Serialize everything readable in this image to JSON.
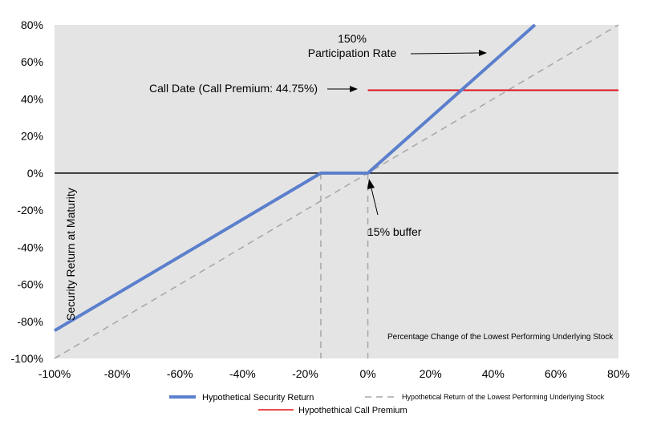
{
  "chart_data": {
    "type": "line",
    "xlim": [
      -1.0,
      0.8
    ],
    "ylim": [
      -1.0,
      0.8
    ],
    "x_ticks": [
      {
        "value": -1.0,
        "label": "-100%"
      },
      {
        "value": -0.8,
        "label": "-80%"
      },
      {
        "value": -0.6,
        "label": "-60%"
      },
      {
        "value": -0.4,
        "label": "-40%"
      },
      {
        "value": -0.2,
        "label": "-20%"
      },
      {
        "value": 0.0,
        "label": "0%"
      },
      {
        "value": 0.2,
        "label": "20%"
      },
      {
        "value": 0.4,
        "label": "40%"
      },
      {
        "value": 0.6,
        "label": "60%"
      },
      {
        "value": 0.8,
        "label": "80%"
      }
    ],
    "y_ticks": [
      {
        "value": -1.0,
        "label": "-100%"
      },
      {
        "value": -0.8,
        "label": "-80%"
      },
      {
        "value": -0.6,
        "label": "-60%"
      },
      {
        "value": -0.4,
        "label": "-40%"
      },
      {
        "value": -0.2,
        "label": "-20%"
      },
      {
        "value": 0.0,
        "label": "0%"
      },
      {
        "value": 0.2,
        "label": "20%"
      },
      {
        "value": 0.4,
        "label": "40%"
      },
      {
        "value": 0.6,
        "label": "60%"
      },
      {
        "value": 0.8,
        "label": "80%"
      }
    ],
    "ylabel": "Security Return at Maturity",
    "xlabel": "Percentage Change of the Lowest Performing Underlying Stock",
    "series": [
      {
        "name": "Hypothetical Security Return",
        "color": "#5b7fcc",
        "style": "solid",
        "x": [
          -1.0,
          -0.15,
          0.0,
          0.5333
        ],
        "y": [
          -0.85,
          0.0,
          0.0,
          0.8
        ]
      },
      {
        "name": "Hypothetical Return of the Lowest Performing Underlying Stock",
        "color": "#a6a6a6",
        "style": "dashed",
        "x": [
          -1.0,
          0.8
        ],
        "y": [
          -1.0,
          0.8
        ]
      },
      {
        "name": "Hypothethical Call Premium",
        "color": "#e0101a",
        "style": "solid",
        "x": [
          0.0,
          0.8
        ],
        "y": [
          0.4475,
          0.4475
        ]
      }
    ],
    "reference_lines": [
      {
        "orientation": "vertical",
        "x": -0.15,
        "color": "#a6a6a6",
        "style": "dashed"
      },
      {
        "orientation": "vertical",
        "x": 0.0,
        "color": "#a6a6a6",
        "style": "dashed"
      }
    ],
    "annotations": {
      "participation_line1": "150%",
      "participation_line2": "Participation Rate",
      "call_date": "Call Date (Call Premium: 44.75%)",
      "buffer": "15% buffer"
    },
    "background": "#e4e4e4",
    "grid": false,
    "legend_position": "bottom"
  }
}
